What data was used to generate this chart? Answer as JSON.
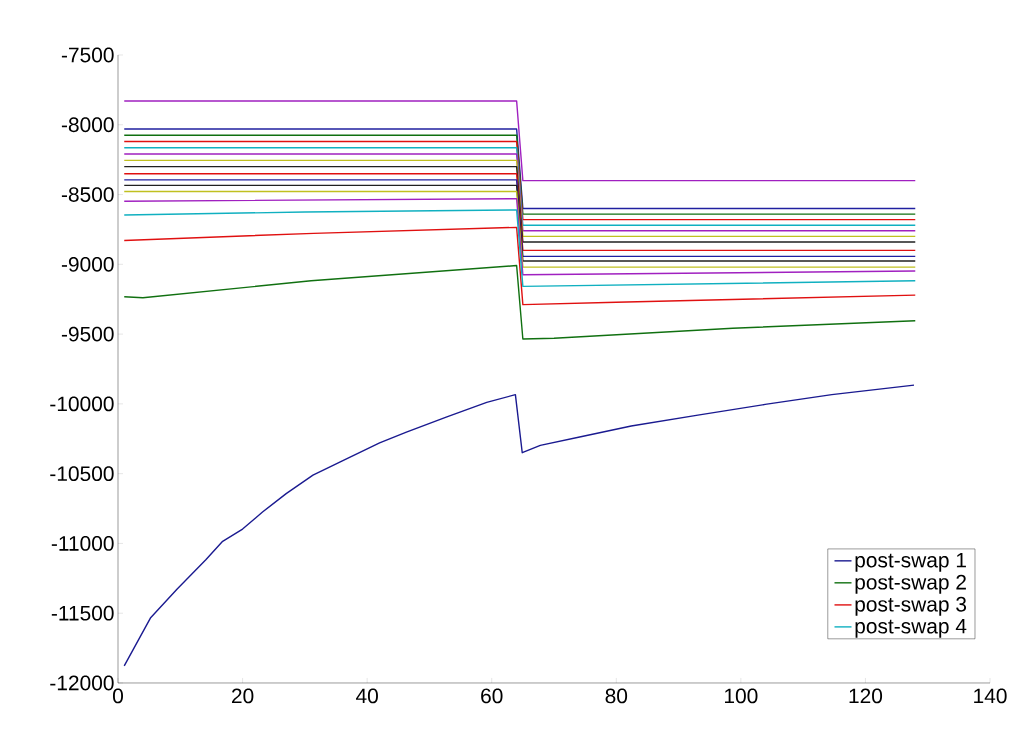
{
  "chart_data": {
    "type": "line",
    "xlim": [
      0,
      140
    ],
    "ylim": [
      -12000,
      -7500
    ],
    "xticks": [
      0,
      20,
      40,
      60,
      80,
      100,
      120,
      140
    ],
    "yticks": [
      -12000,
      -11500,
      -11000,
      -10500,
      -10000,
      -9500,
      -9000,
      -8500,
      -8000,
      -7500
    ],
    "legend": "bottom right",
    "marker": "none",
    "line_style": "solid",
    "series": [
      {
        "color": "#a020c0",
        "x": [
          1,
          64,
          65,
          128
        ],
        "values": [
          -7830,
          -7830,
          -8400,
          -8400
        ]
      },
      {
        "color": "#2020a0",
        "x": [
          1,
          64,
          65,
          128
        ],
        "values": [
          -8030,
          -8030,
          -8600,
          -8600
        ]
      },
      {
        "color": "#107010",
        "x": [
          1,
          64,
          65,
          128
        ],
        "values": [
          -8075,
          -8075,
          -8640,
          -8640
        ]
      },
      {
        "color": "#e01010",
        "x": [
          1,
          64,
          65,
          128
        ],
        "values": [
          -8120,
          -8120,
          -8680,
          -8680
        ]
      },
      {
        "color": "#10b0c0",
        "x": [
          1,
          64,
          65,
          128
        ],
        "values": [
          -8165,
          -8165,
          -8720,
          -8720
        ]
      },
      {
        "color": "#a020c0",
        "x": [
          1,
          64,
          65,
          128
        ],
        "values": [
          -8210,
          -8210,
          -8760,
          -8760
        ]
      },
      {
        "color": "#c0c020",
        "x": [
          1,
          64,
          65,
          128
        ],
        "values": [
          -8255,
          -8255,
          -8800,
          -8800
        ]
      },
      {
        "color": "#202020",
        "x": [
          1,
          64,
          65,
          128
        ],
        "values": [
          -8300,
          -8300,
          -8840,
          -8840
        ]
      },
      {
        "color": "#e01010",
        "x": [
          1,
          64,
          65,
          128
        ],
        "values": [
          -8351,
          -8351,
          -8900,
          -8900
        ]
      },
      {
        "color": "#2020a0",
        "x": [
          1,
          64,
          65,
          128
        ],
        "values": [
          -8395,
          -8395,
          -8943,
          -8943
        ]
      },
      {
        "color": "#202020",
        "x": [
          1,
          64,
          65,
          128
        ],
        "values": [
          -8434,
          -8434,
          -8976,
          -8976
        ]
      },
      {
        "color": "#c0c020",
        "x": [
          1,
          64,
          65,
          128
        ],
        "values": [
          -8478,
          -8478,
          -9020,
          -9020
        ]
      },
      {
        "color": "#a020c0",
        "x": [
          1,
          64,
          65,
          128
        ],
        "values": [
          -8548,
          -8530,
          -9075,
          -9048
        ]
      },
      {
        "name": "post-swap 1",
        "color": "#1a1a90",
        "x": [
          1,
          5.2,
          9.5,
          14.1,
          16.8,
          20,
          23.2,
          27,
          31.3,
          36.1,
          42,
          46.3,
          52.8,
          59.2,
          63.8,
          64.9,
          67.8,
          74.3,
          82.4,
          93.1,
          103.9,
          114.6,
          127.8
        ],
        "values": [
          -11877,
          -11535,
          -11326,
          -11117,
          -10985,
          -10897,
          -10775,
          -10643,
          -10511,
          -10407,
          -10280,
          -10203,
          -10093,
          -9989,
          -9934,
          -10350,
          -10297,
          -10236,
          -10159,
          -10081,
          -10004,
          -9934,
          -9866
        ]
      },
      {
        "name": "post-swap 2",
        "color": "#107010",
        "x": [
          1,
          4,
          31,
          64,
          65,
          70,
          98.7,
          128
        ],
        "values": [
          -9232,
          -9240,
          -9118,
          -9009,
          -9535,
          -9530,
          -9458,
          -9404
        ]
      },
      {
        "name": "post-swap 3",
        "color": "#e01010",
        "x": [
          1,
          31.4,
          64,
          65,
          80,
          128
        ],
        "values": [
          -8829,
          -8778,
          -8735,
          -9289,
          -9272,
          -9221
        ]
      },
      {
        "name": "post-swap 4",
        "color": "#10b0c0",
        "x": [
          1,
          30,
          64,
          65,
          128
        ],
        "values": [
          -8647,
          -8625,
          -8610,
          -9158,
          -9118
        ]
      }
    ]
  }
}
